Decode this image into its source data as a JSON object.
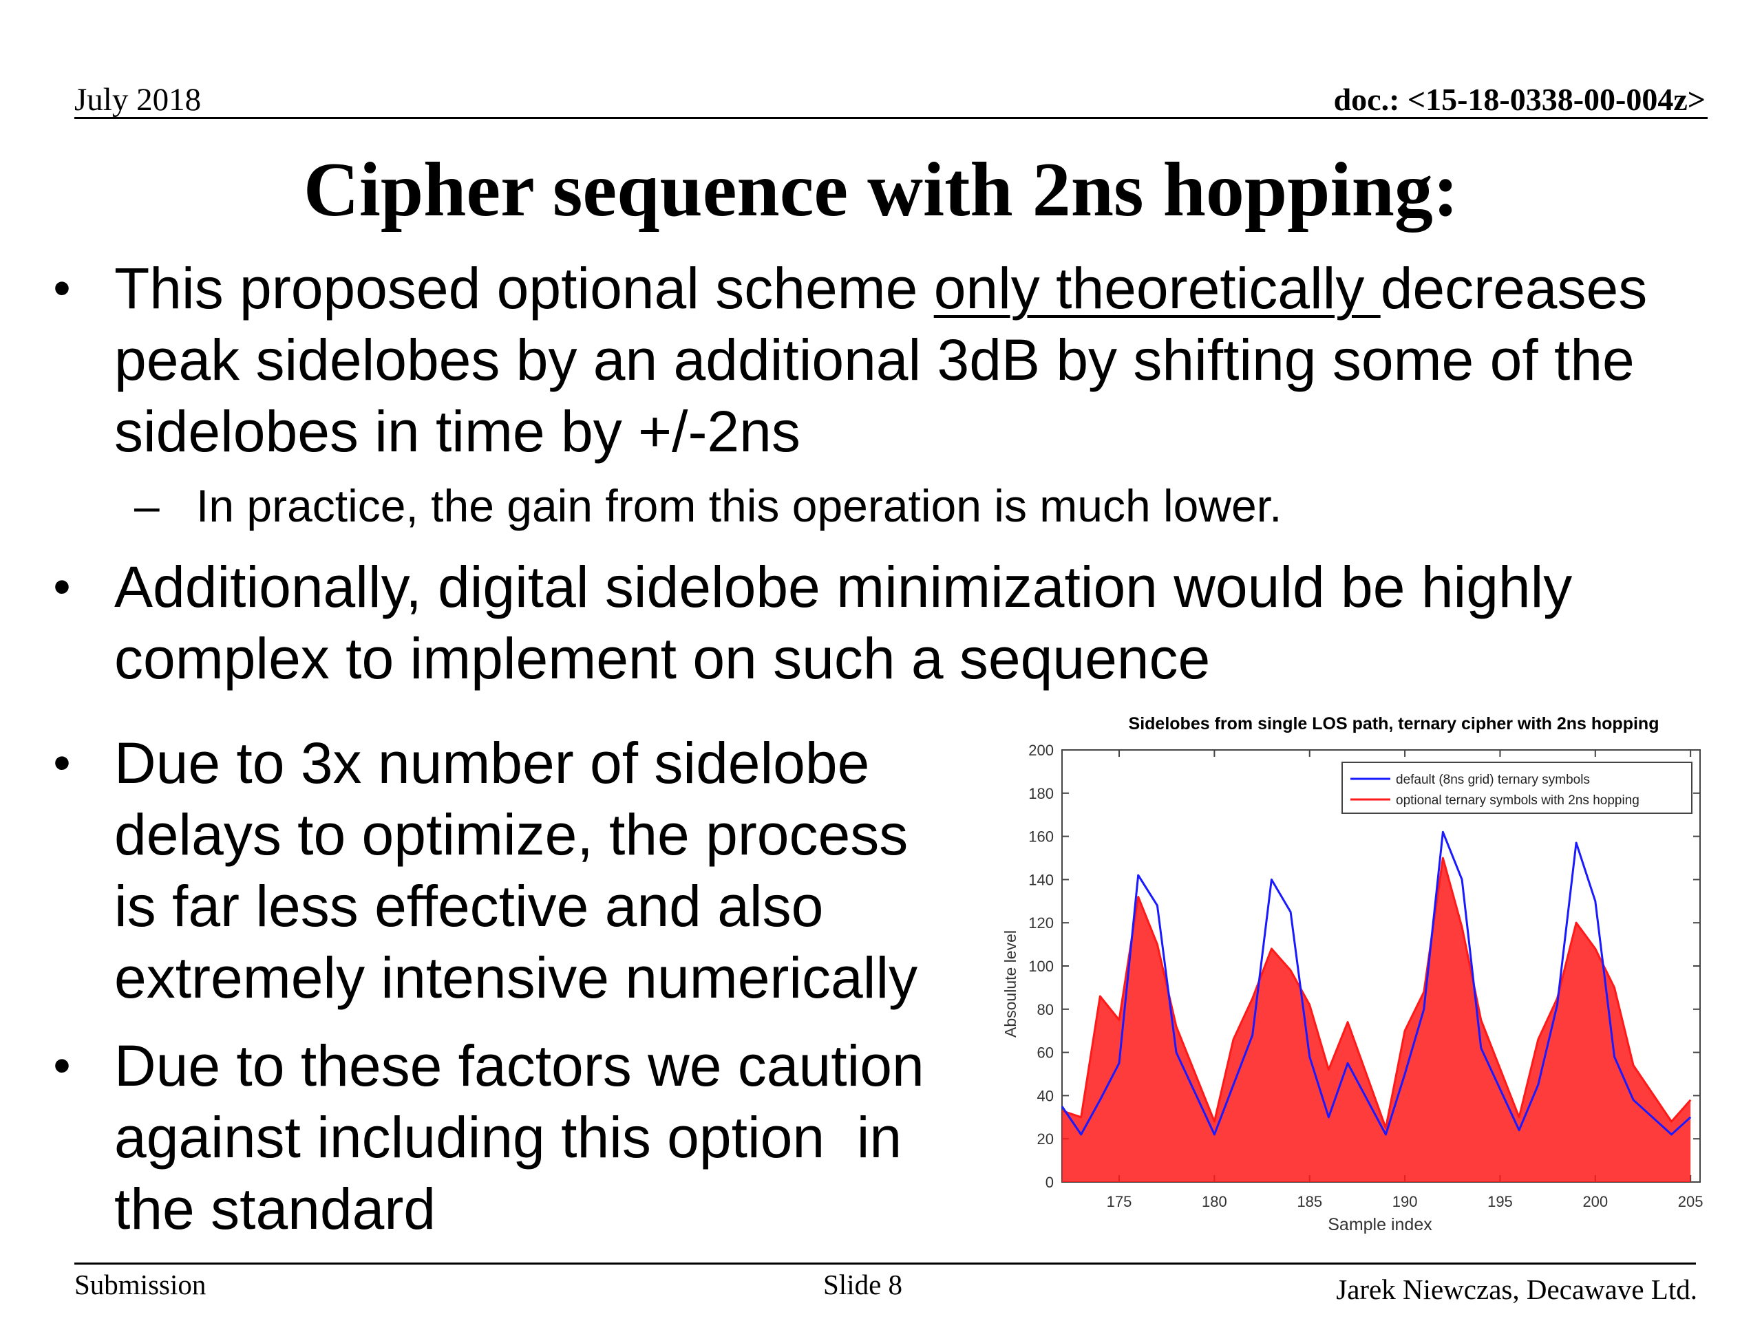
{
  "header": {
    "date": "July 2018",
    "doc": "doc.: <15-18-0338-00-004z>"
  },
  "title": "Cipher sequence with 2ns hopping:",
  "bullets": {
    "b1": {
      "l1_before": "This proposed optional scheme ",
      "l1_underlined": "only theoretically ",
      "l1_after": "decreases",
      "l2": "peak sidelobes by an additional 3dB by shifting some of the",
      "l3": "sidelobes in time by +/-2ns"
    },
    "sub1": "In practice, the gain from this operation is much lower.",
    "b2": {
      "l1": "Additionally, digital sidelobe minimization would be highly",
      "l2": "complex to implement on such a sequence"
    },
    "b3": {
      "l1": "Due to 3x number of sidelobe",
      "l2": "delays to optimize, the process",
      "l3": "is far less effective and also",
      "l4": "extremely intensive numerically"
    },
    "b4": {
      "l1": "Due to these factors we caution",
      "l2": "against including this option  in",
      "l3": "the standard"
    },
    "bullet_char": "•",
    "dash_char": "–"
  },
  "footer": {
    "left": "Submission",
    "center": "Slide 8",
    "right": "Jarek Niewczas,  Decawave Ltd."
  },
  "chart_data": {
    "type": "line",
    "title": "Sidelobes from single LOS path, ternary cipher with 2ns hopping",
    "xlabel": "Sample index",
    "ylabel": "Absoulute level",
    "xlim": [
      172,
      205.5
    ],
    "ylim": [
      0,
      200
    ],
    "xticks": [
      175,
      180,
      185,
      190,
      195,
      200,
      205
    ],
    "yticks": [
      0,
      20,
      40,
      60,
      80,
      100,
      120,
      140,
      160,
      180,
      200
    ],
    "legend_position": "top-right",
    "series": [
      {
        "name": "default (8ns grid) ternary symbols",
        "color": "#1a1aff",
        "x": [
          172,
          173,
          174,
          175,
          176,
          177,
          178,
          180,
          181,
          182,
          183,
          184,
          185,
          186,
          187,
          189,
          190,
          191,
          192,
          193,
          194,
          196,
          197,
          198,
          199,
          200,
          201,
          202,
          204,
          205
        ],
        "y": [
          35,
          22,
          38,
          55,
          142,
          128,
          60,
          22,
          45,
          68,
          140,
          125,
          58,
          30,
          55,
          22,
          50,
          80,
          162,
          140,
          62,
          24,
          45,
          82,
          157,
          130,
          58,
          38,
          22,
          30
        ]
      },
      {
        "name": "optional ternary symbols with 2ns hopping",
        "color": "#ff1a1a",
        "x": [
          172,
          173,
          174,
          175,
          176,
          177,
          178,
          180,
          181,
          182,
          183,
          184,
          185,
          186,
          187,
          189,
          190,
          191,
          192,
          193,
          194,
          196,
          197,
          198,
          199,
          200,
          201,
          202,
          204,
          205
        ],
        "y": [
          33,
          30,
          86,
          75,
          132,
          110,
          72,
          28,
          66,
          85,
          108,
          98,
          82,
          52,
          74,
          25,
          70,
          88,
          150,
          118,
          75,
          30,
          66,
          85,
          120,
          108,
          90,
          54,
          28,
          38
        ]
      }
    ]
  }
}
